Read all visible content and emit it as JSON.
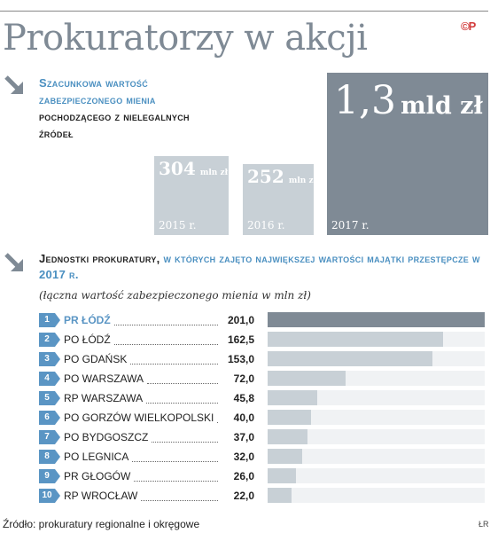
{
  "title": "Prokuratorzy w akcji",
  "logo": "©P",
  "credit": "ŁR",
  "source": "Źródło: prokuratury regionalne i okręgowe",
  "chart_data": [
    {
      "type": "bar",
      "heading_blue": [
        "Szacunkowa wartość",
        "zabezpieczonego mienia"
      ],
      "heading_dark": [
        "pochodzącego z nielegalnych",
        "źródeł"
      ],
      "categories": [
        "2015 r.",
        "2016 r.",
        "2017 r."
      ],
      "values": [
        304,
        252,
        1300
      ],
      "value_labels": [
        {
          "number": "304",
          "unit": "mln zł"
        },
        {
          "number": "252",
          "unit": "mln zł"
        },
        {
          "number": "1,3",
          "unit": "mld zł"
        }
      ]
    },
    {
      "type": "bar",
      "heading_dark": "Jednostki prokuratury,",
      "heading_blue": " w których zajęto największej wartości majątki przestępcze w 2017 r.",
      "subtitle": "(łączna wartość zabezpieczonego mienia w mln zł)",
      "ranks": [
        "1",
        "2",
        "3",
        "4",
        "5",
        "6",
        "7",
        "8",
        "9",
        "10"
      ],
      "categories": [
        "PR ŁÓDŹ",
        "PO ŁÓDŹ",
        "PO GDAŃSK",
        "PO WARSZAWA",
        "RP WARSZAWA",
        "PO GORZÓW WIELKOPOLSKI",
        "PO BYDGOSZCZ",
        "PO LEGNICA",
        "PR GŁOGÓW",
        "RP WROCŁAW"
      ],
      "value_labels": [
        "201,0",
        "162,5",
        "153,0",
        "72,0",
        "45,8",
        "40,0",
        "37,0",
        "32,0",
        "26,0",
        "22,0"
      ],
      "values": [
        201.0,
        162.5,
        153.0,
        72.0,
        45.8,
        40.0,
        37.0,
        32.0,
        26.0,
        22.0
      ]
    }
  ],
  "colors": {
    "accent_blue": "#4a8fc0",
    "dark_bar": "#7f8a95",
    "light_bar": "#c8d0d6",
    "logo_red": "#d23a3a"
  }
}
